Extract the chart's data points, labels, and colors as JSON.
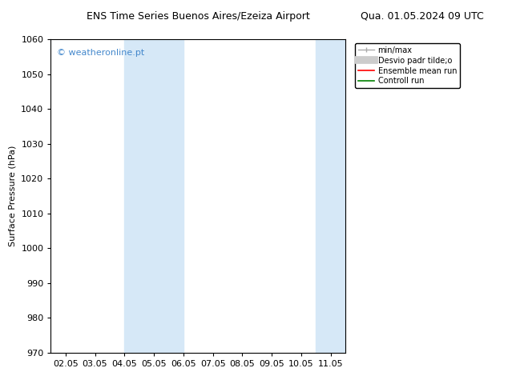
{
  "title_left": "ENS Time Series Buenos Aires/Ezeiza Airport",
  "title_right": "Qua. 01.05.2024 09 UTC",
  "ylabel": "Surface Pressure (hPa)",
  "ylim": [
    970,
    1060
  ],
  "yticks": [
    970,
    980,
    990,
    1000,
    1010,
    1020,
    1030,
    1040,
    1050,
    1060
  ],
  "xtick_labels": [
    "02.05",
    "03.05",
    "04.05",
    "05.05",
    "06.05",
    "07.05",
    "08.05",
    "09.05",
    "10.05",
    "11.05"
  ],
  "xtick_positions": [
    0,
    1,
    2,
    3,
    4,
    5,
    6,
    7,
    8,
    9
  ],
  "xlim": [
    -0.5,
    9.5
  ],
  "bg_color": "#ffffff",
  "plot_bg_color": "#ffffff",
  "shaded_bands": [
    {
      "x_start": 2.0,
      "x_end": 3.0,
      "color": "#d6e8f7",
      "alpha": 1.0
    },
    {
      "x_start": 3.0,
      "x_end": 4.0,
      "color": "#d6e8f7",
      "alpha": 1.0
    },
    {
      "x_start": 8.5,
      "x_end": 9.0,
      "color": "#d6e8f7",
      "alpha": 1.0
    },
    {
      "x_start": 9.0,
      "x_end": 9.5,
      "color": "#d6e8f7",
      "alpha": 1.0
    }
  ],
  "watermark_text": "© weatheronline.pt",
  "watermark_color": "#4488cc",
  "watermark_fontsize": 8,
  "title_fontsize": 9,
  "axis_label_fontsize": 8,
  "tick_fontsize": 8,
  "legend_fontsize": 7,
  "spine_color": "#000000"
}
